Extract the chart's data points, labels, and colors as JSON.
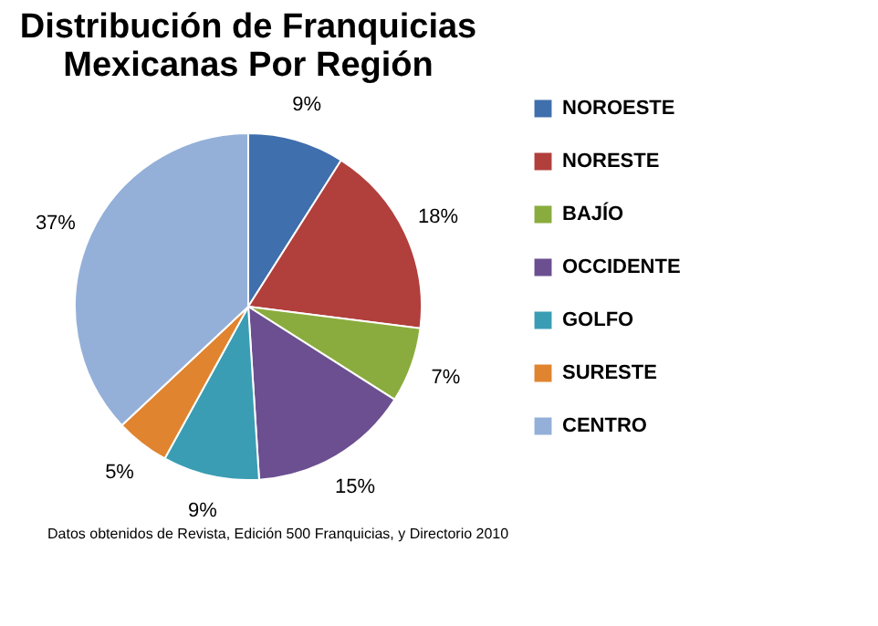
{
  "chart_data": {
    "type": "pie",
    "title": "Distribución de Franquicias\nMexicanas Por Región",
    "categories": [
      "NOROESTE",
      "NORESTE",
      "BAJÍO",
      "OCCIDENTE",
      "GOLFO",
      "SURESTE",
      "CENTRO"
    ],
    "values": [
      9,
      18,
      7,
      15,
      9,
      5,
      37
    ],
    "value_labels": [
      "9%",
      "18%",
      "7%",
      "15%",
      "9%",
      "5%",
      "37%"
    ],
    "colors": [
      "#3f6fad",
      "#b13f3c",
      "#8aac3e",
      "#6b4f90",
      "#3a9db3",
      "#e0842f",
      "#94b0d9"
    ],
    "legend": "right",
    "annotations": [
      "Datos obtenidos de Revista, Edición 500 Franquicias, y Directorio 2010"
    ]
  }
}
